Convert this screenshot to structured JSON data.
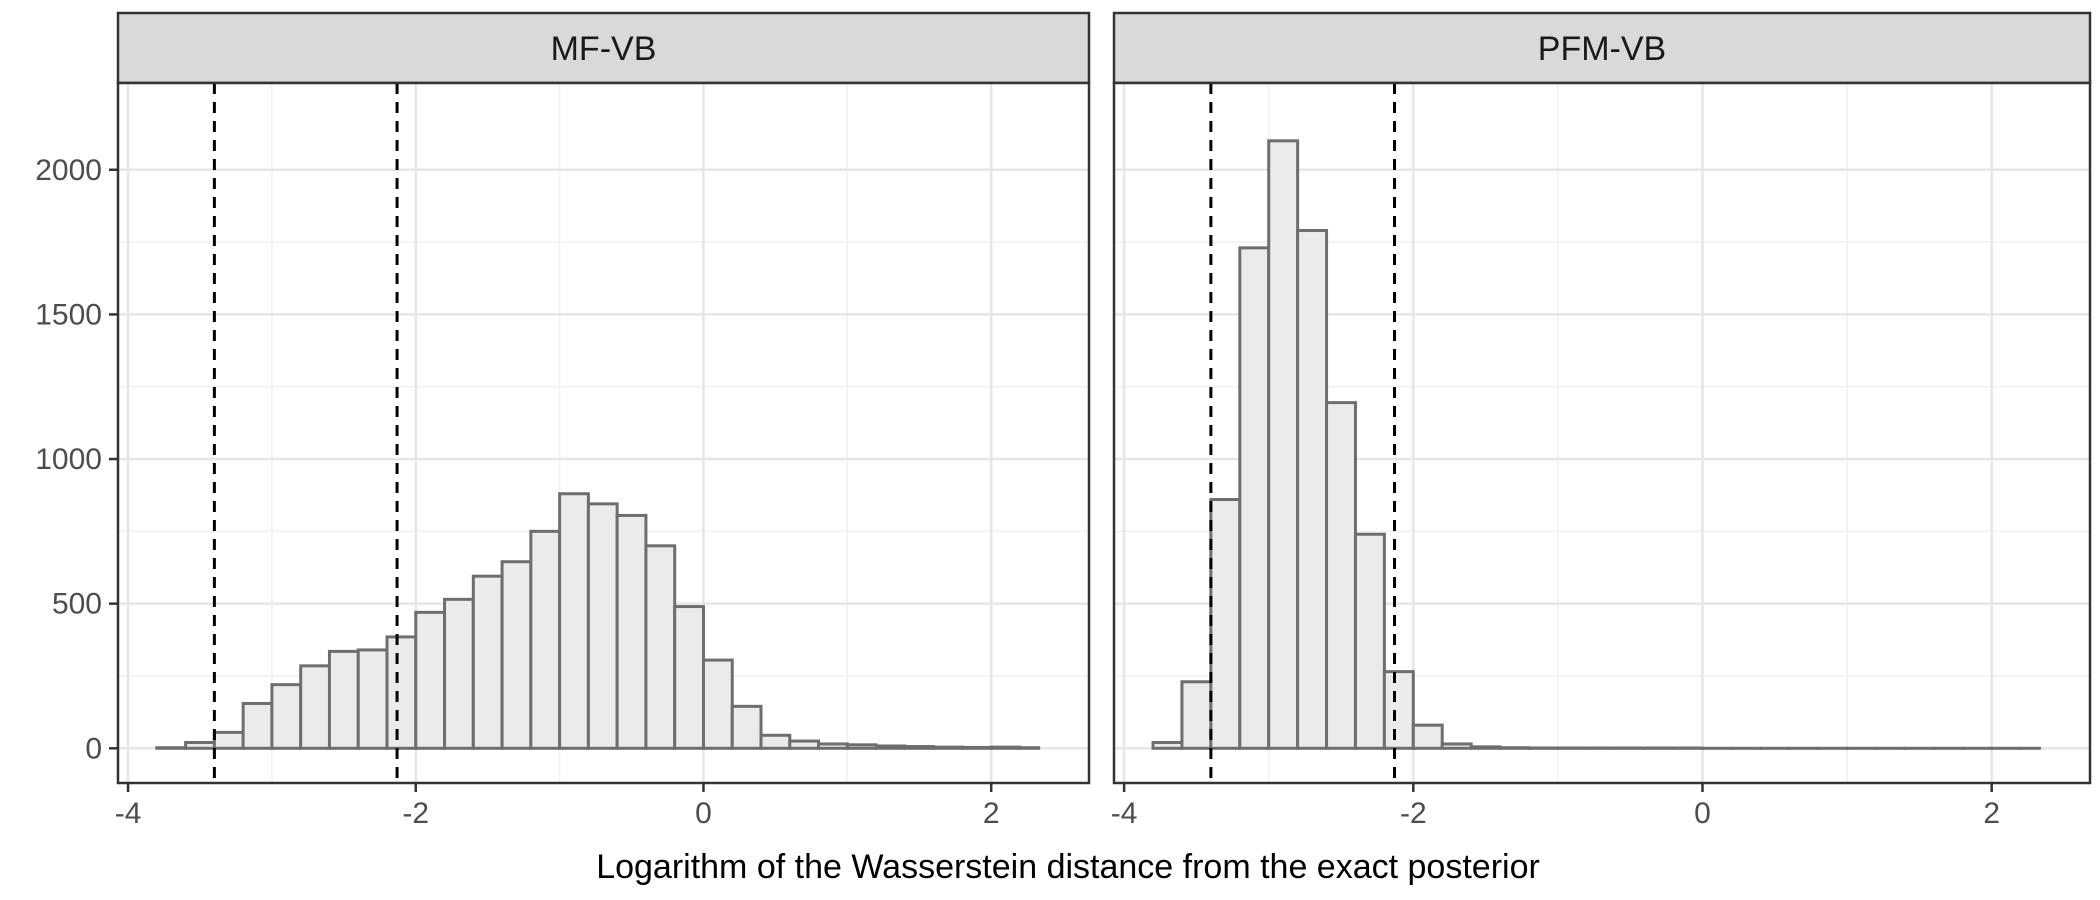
{
  "chart_data": {
    "type": "bar",
    "xlabel": "Logarithm of the Wasserstein distance from the exact posterior",
    "ylabel": "",
    "xlim": [
      -4.07,
      2.68
    ],
    "ylim": [
      -120,
      2300
    ],
    "x_ticks": [
      -4,
      -2,
      0,
      2
    ],
    "x_tick_labels": [
      "-4",
      "-2",
      "0",
      "2"
    ],
    "y_ticks": [
      0,
      500,
      1000,
      1500,
      2000
    ],
    "y_tick_labels": [
      "0",
      "500",
      "1000",
      "1500",
      "2000"
    ],
    "grid": true,
    "bin_edges": [
      -3.8,
      -3.6,
      -3.4,
      -3.2,
      -3.0,
      -2.8,
      -2.6,
      -2.4,
      -2.2,
      -2.0,
      -1.8,
      -1.6,
      -1.4,
      -1.2,
      -1.0,
      -0.8,
      -0.6,
      -0.4,
      -0.2,
      0.0,
      0.2,
      0.4,
      0.6,
      0.8,
      1.0,
      1.2,
      1.4,
      1.6,
      1.8,
      2.0,
      2.2,
      2.33
    ],
    "reference_lines_x": [
      -3.4,
      -2.13
    ],
    "panels": [
      {
        "name": "MF-VB",
        "counts": [
          2,
          20,
          55,
          155,
          220,
          285,
          335,
          340,
          385,
          470,
          515,
          595,
          645,
          750,
          880,
          845,
          805,
          700,
          490,
          305,
          145,
          45,
          25,
          15,
          12,
          8,
          6,
          4,
          3,
          4,
          2
        ]
      },
      {
        "name": "PFM-VB",
        "counts": [
          20,
          230,
          860,
          1730,
          2100,
          1790,
          1195,
          740,
          265,
          80,
          15,
          5,
          2,
          1,
          1,
          1,
          1,
          1,
          1,
          0,
          0,
          0,
          0,
          0,
          0,
          0,
          0,
          0,
          0,
          0,
          0
        ]
      }
    ]
  }
}
